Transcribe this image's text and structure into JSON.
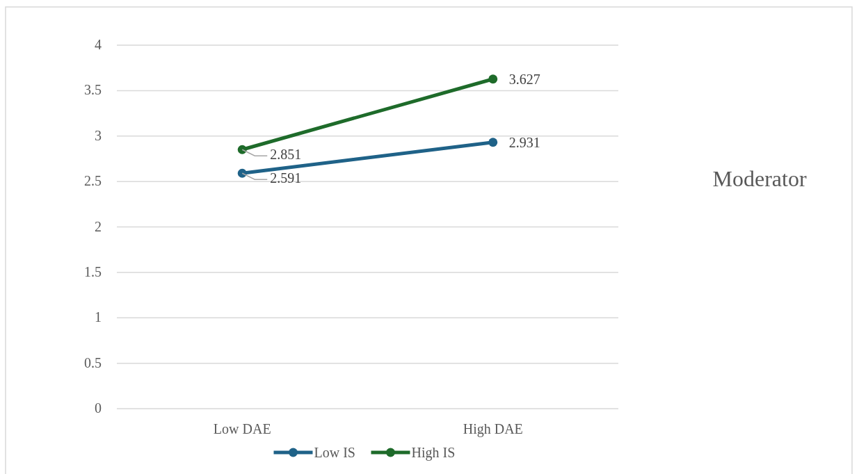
{
  "chart_data": {
    "type": "line",
    "categories": [
      "Low DAE",
      "High DAE"
    ],
    "series": [
      {
        "name": "Low IS",
        "color": "#1f6288",
        "values": [
          2.591,
          2.931
        ]
      },
      {
        "name": "High IS",
        "color": "#1e6b2a",
        "values": [
          2.851,
          3.627
        ]
      }
    ],
    "ylim": [
      0,
      4
    ],
    "yticks": [
      0,
      0.5,
      1,
      1.5,
      2,
      2.5,
      3,
      3.5,
      4
    ],
    "grid": "y",
    "legend": "bottom",
    "marker": "circle",
    "line_style": "solid",
    "data_labels": true,
    "annotations": [
      "Moderator"
    ]
  }
}
